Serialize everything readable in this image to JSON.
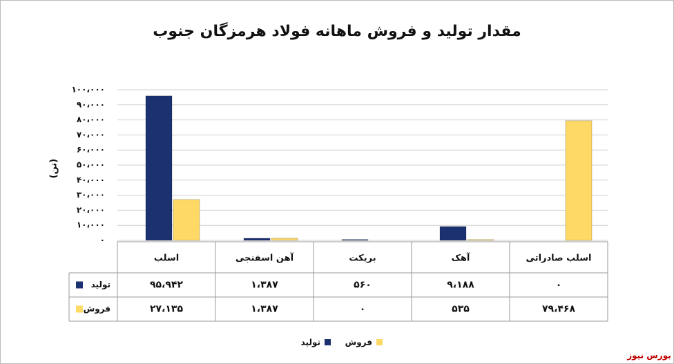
{
  "chart_data": {
    "type": "bar",
    "title": "مقدار تولید و فروش ماهانه فولاد هرمزگان جنوب",
    "y_label": "(تن)",
    "source": "بورس نیوز",
    "categories": [
      "اسلب",
      "آهن اسفنجی",
      "بریکت",
      "آهک",
      "اسلب صادراتی"
    ],
    "series": [
      {
        "name": "تولید",
        "color": "#1c3170",
        "values": [
          95942,
          1387,
          560,
          9188,
          0
        ],
        "value_labels": [
          "۹۵،۹۴۲",
          "۱،۳۸۷",
          "۵۶۰",
          "۹،۱۸۸",
          "۰"
        ]
      },
      {
        "name": "فروش",
        "color": "#ffd966",
        "values": [
          27135,
          1387,
          0,
          535,
          79468
        ],
        "value_labels": [
          "۲۷،۱۳۵",
          "۱،۳۸۷",
          "۰",
          "۵۳۵",
          "۷۹،۴۶۸"
        ]
      }
    ],
    "ylim": [
      0,
      100000
    ],
    "yticks": [
      {
        "value": 0,
        "label": "۰"
      },
      {
        "value": 10000,
        "label": "۱۰،۰۰۰"
      },
      {
        "value": 20000,
        "label": "۲۰،۰۰۰"
      },
      {
        "value": 30000,
        "label": "۳۰،۰۰۰"
      },
      {
        "value": 40000,
        "label": "۴۰،۰۰۰"
      },
      {
        "value": 50000,
        "label": "۵۰،۰۰۰"
      },
      {
        "value": 60000,
        "label": "۶۰،۰۰۰"
      },
      {
        "value": 70000,
        "label": "۷۰،۰۰۰"
      },
      {
        "value": 80000,
        "label": "۸۰،۰۰۰"
      },
      {
        "value": 90000,
        "label": "۹۰،۰۰۰"
      },
      {
        "value": 100000,
        "label": "۱۰۰،۰۰۰"
      }
    ],
    "grid": true
  }
}
